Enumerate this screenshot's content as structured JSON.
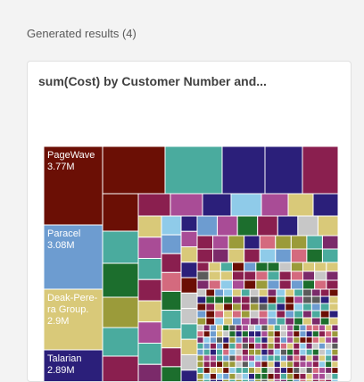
{
  "results": {
    "header": "Generated results (4)"
  },
  "card": {
    "title": "sum(Cost) by Customer Number and..."
  },
  "chart_data": {
    "type": "treemap",
    "title": "sum(Cost) by Customer Number and...",
    "measure": "sum(Cost)",
    "labeled_nodes": [
      {
        "name": "PageWave",
        "value_label": "3.77M",
        "color": "#6b0f05"
      },
      {
        "name": "Paracel",
        "value_label": "3.08M",
        "color": "#6d9cd0"
      },
      {
        "name": "Deak-Pere-ra Group.",
        "value_label": "2.9M",
        "color": "#d9c979"
      },
      {
        "name": "Talarian",
        "value_label": "2.89M",
        "color": "#2b1f7a"
      }
    ],
    "palette": [
      "#6b0f05",
      "#4aab9e",
      "#2b1f7a",
      "#8a1f4f",
      "#9b9b3a",
      "#6d9cd0",
      "#d9c979",
      "#a94c96",
      "#8fcbe9",
      "#1c6e2d",
      "#d46a7e",
      "#5b5b5b",
      "#7b2a6a",
      "#c7c7c7"
    ]
  }
}
